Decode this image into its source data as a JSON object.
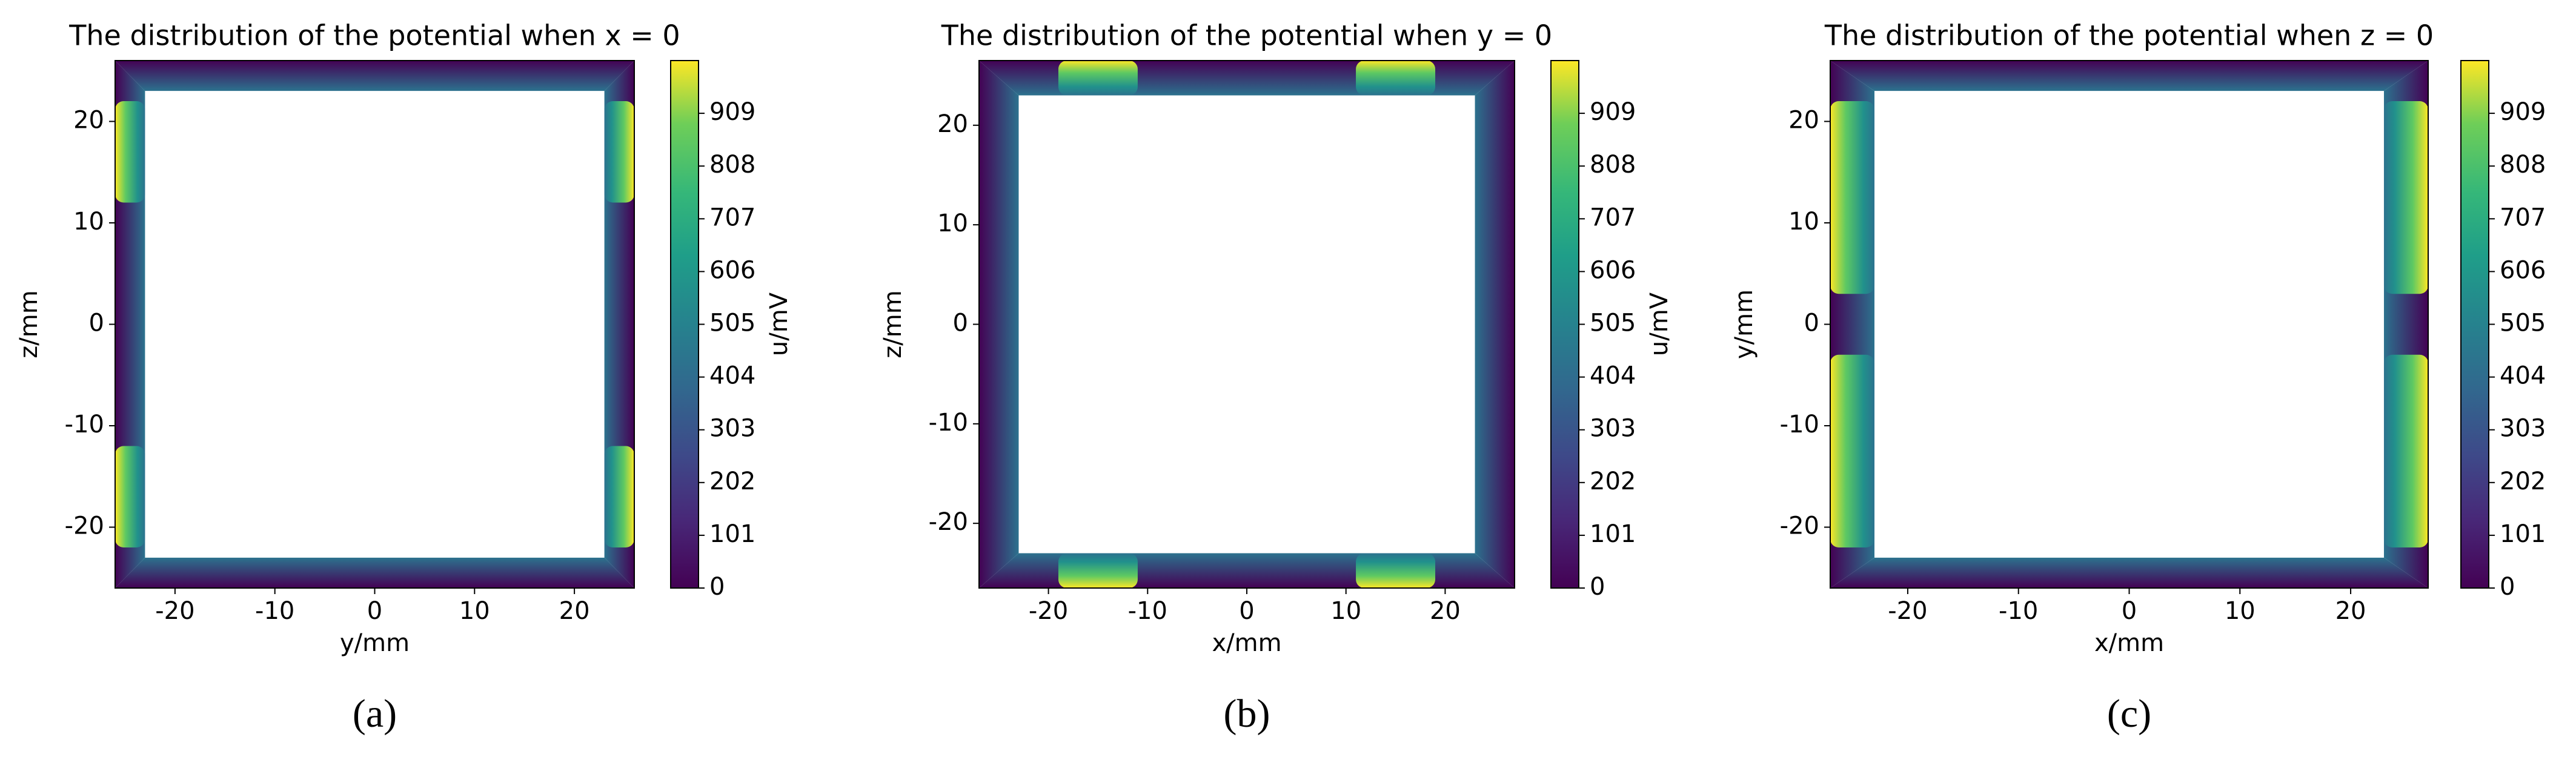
{
  "chart_data": [
    {
      "type": "heatmap",
      "title": "The distribution of the potential when x = 0",
      "xlabel": "y/mm",
      "ylabel": "z/mm",
      "xlim": [
        -26,
        26
      ],
      "ylim": [
        -26,
        26
      ],
      "xticks": [
        -20,
        -10,
        0,
        10,
        20
      ],
      "yticks": [
        -20,
        -10,
        0,
        10,
        20
      ],
      "colormap": "viridis",
      "clim": [
        0,
        1010
      ],
      "cticks": [
        0,
        101,
        202,
        303,
        404,
        505,
        606,
        707,
        808,
        909
      ],
      "clabel": "u/mV",
      "inner": [
        -23,
        23
      ],
      "hotspots": [
        {
          "side": "left",
          "range": [
            12,
            22
          ]
        },
        {
          "side": "left",
          "range": [
            -22,
            -12
          ]
        },
        {
          "side": "right",
          "range": [
            12,
            22
          ]
        },
        {
          "side": "right",
          "range": [
            -22,
            -12
          ]
        }
      ],
      "panel_label": "(a)"
    },
    {
      "type": "heatmap",
      "title": "The distribution of the potential when y = 0",
      "xlabel": "x/mm",
      "ylabel": "z/mm",
      "xlim": [
        -27,
        27
      ],
      "ylim": [
        -26.5,
        26.5
      ],
      "xticks": [
        -20,
        -10,
        0,
        10,
        20
      ],
      "yticks": [
        -20,
        -10,
        0,
        10,
        20
      ],
      "colormap": "viridis",
      "clim": [
        0,
        1010
      ],
      "cticks": [
        0,
        101,
        202,
        303,
        404,
        505,
        606,
        707,
        808,
        909
      ],
      "clabel": "u/mV",
      "inner": [
        -23,
        23
      ],
      "hotspots": [
        {
          "side": "top",
          "range": [
            -19,
            -11
          ]
        },
        {
          "side": "top",
          "range": [
            11,
            19
          ]
        },
        {
          "side": "bottom",
          "range": [
            -19,
            -11
          ]
        },
        {
          "side": "bottom",
          "range": [
            11,
            19
          ]
        }
      ],
      "panel_label": "(b)"
    },
    {
      "type": "heatmap",
      "title": "The distribution of the potential when z = 0",
      "xlabel": "x/mm",
      "ylabel": "y/mm",
      "xlim": [
        -27,
        27
      ],
      "ylim": [
        -26,
        26
      ],
      "xticks": [
        -20,
        -10,
        0,
        10,
        20
      ],
      "yticks": [
        -20,
        -10,
        0,
        10,
        20
      ],
      "colormap": "viridis",
      "clim": [
        0,
        1010
      ],
      "cticks": [
        0,
        101,
        202,
        303,
        404,
        505,
        606,
        707,
        808,
        909
      ],
      "inner": [
        -23,
        23
      ],
      "hotspots": [
        {
          "side": "left",
          "range": [
            3,
            22
          ]
        },
        {
          "side": "left",
          "range": [
            -22,
            -3
          ]
        },
        {
          "side": "right",
          "range": [
            3,
            22
          ]
        },
        {
          "side": "right",
          "range": [
            -22,
            -3
          ]
        }
      ],
      "panel_label": "(c)"
    }
  ]
}
